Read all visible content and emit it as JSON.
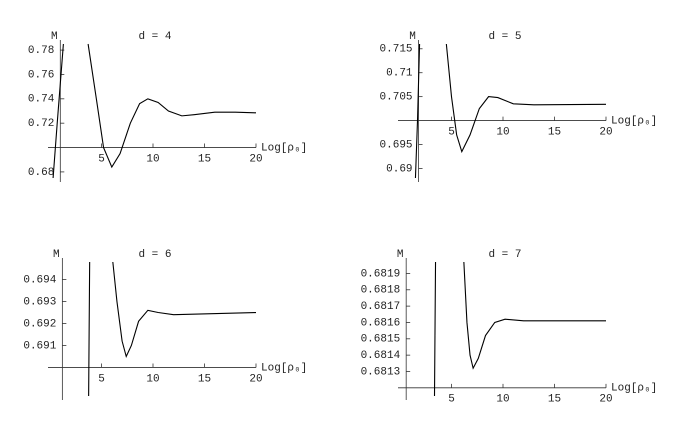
{
  "chart_data": [
    {
      "type": "line",
      "title": "d = 4",
      "ylabel": "M",
      "xlabel": "Log[ρ₀]",
      "color": "#000000",
      "xlim": [
        0,
        20
      ],
      "ylim": [
        0.675,
        0.785
      ],
      "axes_origin": [
        1,
        0.7
      ],
      "xticks": [
        5,
        10,
        15,
        20
      ],
      "yticks": [
        0.68,
        0.72,
        0.74,
        0.76,
        0.78
      ],
      "x": [
        0.3,
        0.7,
        1.3,
        null,
        3.7,
        4.5,
        5.2,
        6,
        6.8,
        7.8,
        8.7,
        9.5,
        10.5,
        11.5,
        12.8,
        14,
        16,
        18,
        20
      ],
      "values": [
        0.675,
        0.72,
        0.785,
        null,
        0.785,
        0.74,
        0.7,
        0.684,
        0.695,
        0.72,
        0.736,
        0.74,
        0.737,
        0.73,
        0.726,
        0.727,
        0.729,
        0.729,
        0.7285
      ]
    },
    {
      "type": "line",
      "title": "d = 5",
      "ylabel": "M",
      "xlabel": "Log[ρ₀]",
      "color": "#000000",
      "xlim": [
        0,
        20
      ],
      "ylim": [
        0.688,
        0.716
      ],
      "axes_origin": [
        1.8,
        0.7
      ],
      "xticks": [
        5,
        10,
        15,
        20
      ],
      "yticks": [
        0.69,
        0.695,
        0.705,
        0.71,
        0.715
      ],
      "x": [
        1.5,
        1.7,
        1.9,
        null,
        4.5,
        5,
        5.5,
        6,
        6.8,
        7.7,
        8.6,
        9.5,
        11,
        13,
        20
      ],
      "values": [
        0.688,
        0.7,
        0.716,
        null,
        0.716,
        0.705,
        0.697,
        0.6935,
        0.697,
        0.7025,
        0.705,
        0.7048,
        0.7035,
        0.7033,
        0.7034
      ]
    },
    {
      "type": "line",
      "title": "d = 6",
      "ylabel": "M",
      "xlabel": "Log[ρ₀]",
      "color": "#000000",
      "xlim": [
        0,
        20
      ],
      "ylim": [
        0.6887,
        0.6948
      ],
      "axes_origin": [
        1.2,
        0.69
      ],
      "xticks": [
        5,
        10,
        15,
        20
      ],
      "yticks": [
        0.691,
        0.692,
        0.693,
        0.694
      ],
      "x": [
        3.75,
        3.85,
        null,
        6.1,
        6.5,
        7,
        7.4,
        7.9,
        8.6,
        9.5,
        10.5,
        12,
        20
      ],
      "values": [
        0.6887,
        0.6948,
        null,
        0.6948,
        0.693,
        0.6912,
        0.6905,
        0.691,
        0.6921,
        0.6926,
        0.6925,
        0.6924,
        0.6925
      ]
    },
    {
      "type": "line",
      "title": "d = 7",
      "ylabel": "M",
      "xlabel": "Log[ρ₀]",
      "color": "#000000",
      "xlim": [
        0,
        20
      ],
      "ylim": [
        0.68115,
        0.68197
      ],
      "axes_origin": [
        0.6,
        0.6812
      ],
      "xticks": [
        5,
        10,
        15,
        20
      ],
      "yticks": [
        0.6813,
        0.6814,
        0.6815,
        0.6816,
        0.6817,
        0.6818,
        0.6819
      ],
      "x": [
        3.35,
        3.45,
        null,
        6.2,
        6.5,
        6.8,
        7.1,
        7.6,
        8.3,
        9.2,
        10.2,
        12,
        20
      ],
      "values": [
        0.68115,
        0.68197,
        null,
        0.68197,
        0.6816,
        0.6814,
        0.68132,
        0.68138,
        0.68152,
        0.6816,
        0.68162,
        0.68161,
        0.68161
      ]
    }
  ]
}
